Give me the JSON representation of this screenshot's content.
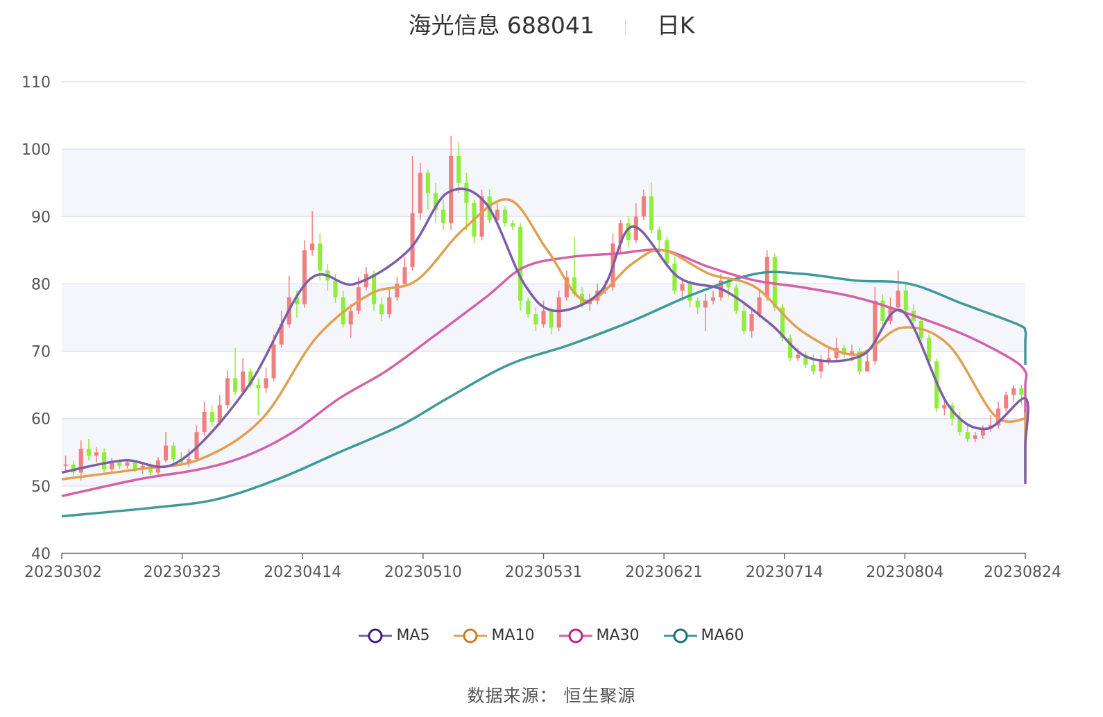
{
  "title": {
    "name": "海光信息 688041",
    "period": "日K"
  },
  "source": {
    "label": "数据来源：",
    "value": "恒生聚源"
  },
  "colors": {
    "up": "#f08080",
    "down": "#90ee3a",
    "ma5": "#7b5ea7",
    "ma10": "#e0a050",
    "ma30": "#d660a8",
    "ma60": "#3e9a9a",
    "grid": "#dfe4f0",
    "band": "#f4f6fb"
  },
  "chart_data": {
    "type": "candlestick",
    "ylim": [
      40,
      110
    ],
    "yticks": [
      40,
      50,
      60,
      70,
      80,
      90,
      100,
      110
    ],
    "xticks": [
      "20230302",
      "20230323",
      "20230414",
      "20230510",
      "20230531",
      "20230621",
      "20230714",
      "20230804",
      "20230824"
    ],
    "num_days": 125,
    "grid": true,
    "legend_position": "bottom",
    "legend": [
      "MA5",
      "MA10",
      "MA30",
      "MA60"
    ],
    "candles": [
      [
        53.0,
        53.2,
        54.5,
        52.2
      ],
      [
        53.2,
        52.0,
        53.8,
        51.5
      ],
      [
        52.0,
        55.5,
        56.8,
        50.8
      ],
      [
        55.5,
        54.5,
        57.0,
        53.8
      ],
      [
        54.5,
        55.0,
        55.8,
        53.5
      ],
      [
        55.0,
        52.5,
        55.6,
        52.0
      ],
      [
        52.5,
        53.5,
        54.2,
        52.1
      ],
      [
        53.5,
        53.0,
        54.0,
        52.5
      ],
      [
        53.0,
        53.5,
        53.9,
        52.6
      ],
      [
        53.5,
        52.5,
        53.8,
        52.0
      ],
      [
        52.5,
        53.0,
        53.5,
        51.8
      ],
      [
        53.0,
        52.0,
        53.4,
        51.6
      ],
      [
        52.0,
        53.8,
        54.3,
        51.7
      ],
      [
        53.8,
        56.0,
        58.0,
        53.5
      ],
      [
        56.0,
        54.0,
        56.5,
        53.0
      ],
      [
        54.0,
        53.5,
        55.0,
        53.0
      ],
      [
        53.5,
        54.0,
        55.5,
        52.8
      ],
      [
        54.0,
        58.0,
        59.0,
        53.8
      ],
      [
        58.0,
        61.0,
        62.5,
        57.5
      ],
      [
        61.0,
        59.5,
        62.0,
        58.8
      ],
      [
        59.5,
        62.0,
        63.5,
        59.0
      ],
      [
        62.0,
        66.0,
        67.2,
        61.5
      ],
      [
        66.0,
        64.0,
        70.5,
        63.5
      ],
      [
        64.0,
        67.0,
        69.0,
        63.8
      ],
      [
        67.0,
        65.0,
        67.5,
        64.5
      ],
      [
        65.0,
        64.5,
        66.0,
        60.5
      ],
      [
        64.5,
        66.0,
        67.5,
        63.8
      ],
      [
        66.0,
        71.0,
        72.5,
        65.5
      ],
      [
        71.0,
        74.0,
        76.0,
        70.5
      ],
      [
        74.0,
        78.0,
        81.2,
        73.5
      ],
      [
        78.0,
        77.0,
        79.0,
        75.0
      ],
      [
        77.0,
        85.0,
        86.5,
        76.5
      ],
      [
        85.0,
        86.0,
        90.8,
        84.2
      ],
      [
        86.0,
        82.0,
        87.5,
        80.5
      ],
      [
        82.0,
        80.5,
        83.0,
        79.0
      ],
      [
        80.5,
        78.0,
        81.5,
        77.2
      ],
      [
        78.0,
        74.0,
        79.0,
        73.5
      ],
      [
        74.0,
        76.0,
        77.0,
        72.0
      ],
      [
        76.0,
        79.5,
        81.0,
        75.5
      ],
      [
        79.5,
        81.5,
        82.5,
        79.0
      ],
      [
        81.5,
        77.0,
        82.0,
        76.0
      ],
      [
        77.0,
        75.5,
        78.0,
        74.5
      ],
      [
        75.5,
        78.0,
        79.5,
        75.0
      ],
      [
        78.0,
        80.0,
        81.0,
        77.5
      ],
      [
        80.0,
        82.5,
        84.0,
        79.5
      ],
      [
        82.5,
        90.5,
        99.0,
        82.0
      ],
      [
        90.5,
        96.5,
        98.0,
        89.5
      ],
      [
        96.5,
        93.5,
        97.0,
        91.0
      ],
      [
        93.5,
        91.0,
        95.0,
        89.0
      ],
      [
        91.0,
        89.0,
        92.5,
        88.0
      ],
      [
        89.0,
        99.0,
        102.0,
        88.0
      ],
      [
        99.0,
        95.0,
        101.0,
        93.5
      ],
      [
        95.0,
        92.0,
        96.5,
        88.0
      ],
      [
        92.0,
        87.0,
        92.5,
        86.0
      ],
      [
        87.0,
        93.0,
        94.0,
        86.5
      ],
      [
        93.0,
        89.5,
        94.0,
        89.0
      ],
      [
        89.5,
        91.0,
        92.0,
        88.8
      ],
      [
        91.0,
        89.0,
        91.5,
        88.5
      ],
      [
        89.0,
        88.5,
        89.5,
        88.0
      ],
      [
        88.5,
        77.5,
        89.0,
        76.0
      ],
      [
        77.5,
        75.5,
        78.0,
        75.0
      ],
      [
        75.5,
        74.0,
        76.5,
        73.0
      ],
      [
        74.0,
        76.0,
        77.5,
        73.5
      ],
      [
        76.0,
        73.5,
        76.5,
        72.5
      ],
      [
        73.5,
        78.0,
        79.0,
        73.0
      ],
      [
        78.0,
        81.0,
        82.0,
        77.5
      ],
      [
        81.0,
        78.5,
        87.0,
        78.0
      ],
      [
        78.5,
        77.0,
        79.5,
        76.5
      ],
      [
        77.0,
        77.5,
        78.5,
        76.0
      ],
      [
        77.5,
        79.0,
        80.0,
        77.0
      ],
      [
        79.0,
        79.5,
        80.5,
        78.5
      ],
      [
        79.5,
        86.0,
        87.5,
        79.0
      ],
      [
        86.0,
        89.0,
        89.5,
        84.5
      ],
      [
        89.0,
        86.5,
        90.0,
        85.5
      ],
      [
        86.5,
        90.0,
        92.0,
        86.0
      ],
      [
        90.0,
        93.0,
        94.0,
        89.5
      ],
      [
        93.0,
        88.0,
        95.0,
        87.5
      ],
      [
        88.0,
        86.5,
        88.5,
        84.0
      ],
      [
        86.5,
        83.0,
        87.0,
        82.5
      ],
      [
        83.0,
        79.0,
        84.0,
        78.5
      ],
      [
        79.0,
        80.0,
        80.5,
        77.5
      ],
      [
        80.0,
        77.5,
        80.5,
        76.5
      ],
      [
        77.5,
        76.5,
        78.0,
        75.5
      ],
      [
        76.5,
        77.5,
        78.5,
        73.0
      ],
      [
        77.5,
        78.0,
        79.0,
        77.0
      ],
      [
        78.0,
        80.5,
        81.5,
        77.5
      ],
      [
        80.5,
        79.5,
        81.0,
        78.0
      ],
      [
        79.5,
        76.0,
        80.0,
        75.5
      ],
      [
        76.0,
        73.0,
        77.0,
        72.5
      ],
      [
        73.0,
        75.5,
        76.5,
        72.0
      ],
      [
        75.5,
        78.0,
        79.0,
        75.0
      ],
      [
        78.0,
        84.0,
        85.0,
        77.5
      ],
      [
        84.0,
        76.5,
        84.5,
        76.0
      ],
      [
        76.5,
        72.0,
        77.0,
        71.5
      ],
      [
        72.0,
        69.0,
        72.5,
        68.5
      ],
      [
        69.0,
        69.5,
        70.5,
        68.5
      ],
      [
        69.5,
        68.0,
        70.0,
        67.5
      ],
      [
        68.0,
        67.0,
        69.5,
        66.5
      ],
      [
        67.0,
        68.5,
        69.5,
        66.0
      ],
      [
        68.5,
        69.0,
        70.5,
        68.0
      ],
      [
        69.0,
        70.5,
        72.0,
        68.5
      ],
      [
        70.5,
        69.5,
        71.0,
        69.0
      ],
      [
        69.5,
        70.0,
        71.0,
        68.5
      ],
      [
        70.0,
        67.0,
        70.5,
        66.5
      ],
      [
        67.0,
        68.5,
        70.0,
        67.0
      ],
      [
        68.5,
        77.5,
        79.5,
        68.0
      ],
      [
        77.5,
        74.5,
        78.5,
        74.0
      ],
      [
        74.5,
        76.5,
        78.0,
        74.0
      ],
      [
        76.5,
        79.0,
        82.0,
        76.0
      ],
      [
        79.0,
        76.0,
        80.0,
        75.0
      ],
      [
        76.0,
        74.5,
        77.0,
        73.5
      ],
      [
        74.5,
        72.0,
        75.0,
        71.5
      ],
      [
        72.0,
        68.5,
        72.5,
        68.0
      ],
      [
        68.5,
        61.5,
        69.0,
        61.0
      ],
      [
        61.5,
        62.0,
        63.0,
        60.5
      ],
      [
        62.0,
        60.0,
        62.5,
        59.0
      ],
      [
        60.0,
        58.0,
        61.0,
        57.5
      ],
      [
        58.0,
        57.0,
        59.0,
        56.5
      ],
      [
        57.0,
        57.5,
        58.0,
        56.5
      ],
      [
        57.5,
        58.5,
        59.0,
        57.0
      ],
      [
        58.5,
        59.0,
        60.5,
        58.0
      ],
      [
        59.0,
        61.5,
        62.5,
        58.5
      ],
      [
        61.5,
        63.5,
        64.0,
        61.0
      ],
      [
        63.5,
        64.5,
        65.0,
        62.5
      ],
      [
        64.5,
        63.5,
        65.0,
        62.0
      ]
    ],
    "ma5": [
      [
        0,
        52.0
      ],
      [
        8,
        53.8
      ],
      [
        15,
        53.5
      ],
      [
        24,
        64.5
      ],
      [
        32,
        80.5
      ],
      [
        38,
        80.0
      ],
      [
        45,
        85.0
      ],
      [
        50,
        93.5
      ],
      [
        55,
        92.0
      ],
      [
        60,
        80.0
      ],
      [
        64,
        76.0
      ],
      [
        70,
        79.0
      ],
      [
        74,
        88.5
      ],
      [
        80,
        81.0
      ],
      [
        86,
        79.0
      ],
      [
        92,
        74.0
      ],
      [
        97,
        69.0
      ],
      [
        104,
        69.5
      ],
      [
        109,
        76.0
      ],
      [
        115,
        62.0
      ],
      [
        120,
        58.5
      ],
      [
        126,
        63.0
      ],
      [
        131,
        56.0
      ],
      [
        136,
        51.0
      ],
      [
        141,
        50.5
      ]
    ],
    "ma10": [
      [
        0,
        51.0
      ],
      [
        10,
        52.5
      ],
      [
        18,
        54.0
      ],
      [
        26,
        60.0
      ],
      [
        33,
        72.0
      ],
      [
        40,
        78.5
      ],
      [
        46,
        80.5
      ],
      [
        52,
        88.0
      ],
      [
        58,
        92.5
      ],
      [
        63,
        85.0
      ],
      [
        68,
        77.5
      ],
      [
        74,
        83.0
      ],
      [
        78,
        85.0
      ],
      [
        84,
        81.5
      ],
      [
        90,
        79.5
      ],
      [
        96,
        73.0
      ],
      [
        103,
        69.5
      ],
      [
        109,
        73.5
      ],
      [
        115,
        71.0
      ],
      [
        121,
        60.5
      ],
      [
        126,
        60.0
      ],
      [
        130,
        60.5
      ],
      [
        136,
        55.0
      ],
      [
        141,
        51.5
      ]
    ],
    "ma30": [
      [
        0,
        48.5
      ],
      [
        10,
        51.0
      ],
      [
        18,
        52.5
      ],
      [
        24,
        54.5
      ],
      [
        30,
        58.0
      ],
      [
        36,
        63.0
      ],
      [
        42,
        67.0
      ],
      [
        48,
        72.0
      ],
      [
        55,
        78.0
      ],
      [
        60,
        82.5
      ],
      [
        66,
        84.0
      ],
      [
        72,
        84.5
      ],
      [
        78,
        85.0
      ],
      [
        84,
        82.5
      ],
      [
        90,
        80.5
      ],
      [
        96,
        79.5
      ],
      [
        103,
        78.0
      ],
      [
        110,
        75.5
      ],
      [
        117,
        72.5
      ],
      [
        123,
        69.0
      ],
      [
        128,
        67.0
      ],
      [
        134,
        65.0
      ],
      [
        141,
        60.0
      ]
    ],
    "ma60": [
      [
        0,
        45.5
      ],
      [
        12,
        46.8
      ],
      [
        20,
        48.0
      ],
      [
        28,
        51.0
      ],
      [
        36,
        55.0
      ],
      [
        44,
        59.0
      ],
      [
        50,
        63.0
      ],
      [
        58,
        68.0
      ],
      [
        66,
        71.0
      ],
      [
        74,
        74.5
      ],
      [
        82,
        78.5
      ],
      [
        90,
        81.5
      ],
      [
        96,
        81.5
      ],
      [
        103,
        80.5
      ],
      [
        110,
        80.0
      ],
      [
        117,
        77.0
      ],
      [
        124,
        74.0
      ],
      [
        130,
        73.0
      ],
      [
        136,
        71.5
      ],
      [
        141,
        68.0
      ]
    ]
  }
}
